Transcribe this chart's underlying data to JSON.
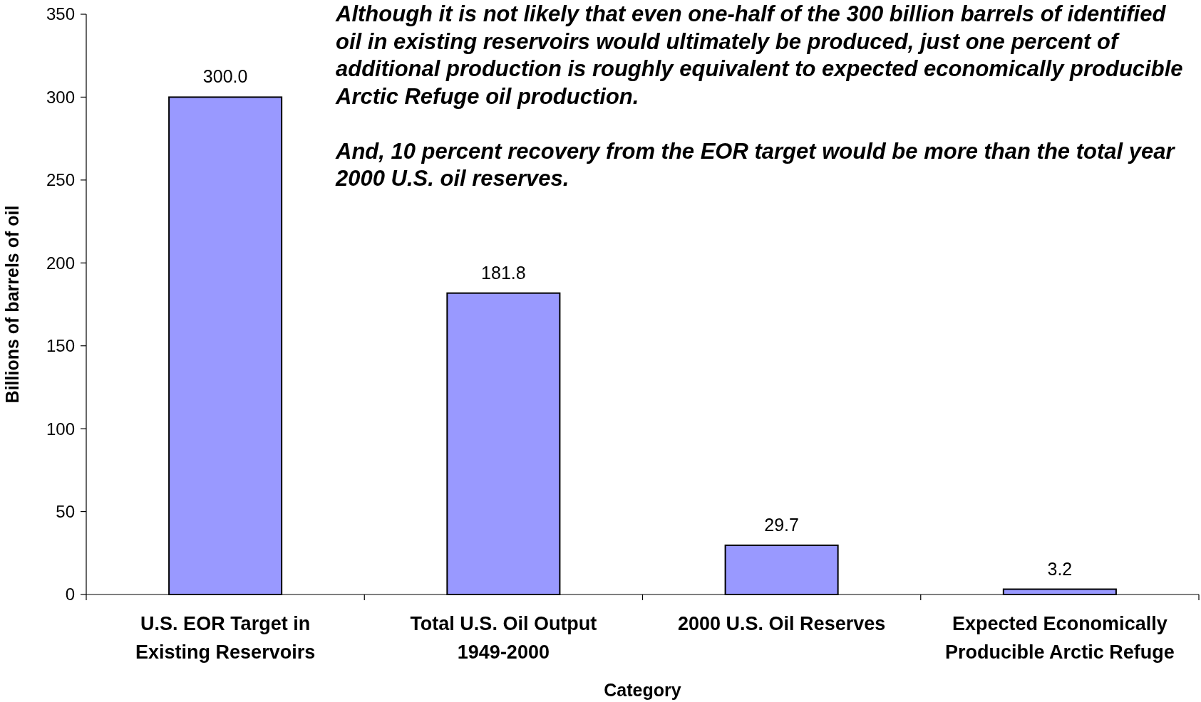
{
  "chart_data": {
    "type": "bar",
    "categories": [
      "U.S. EOR Target in Existing Reservoirs",
      "Total U.S. Oil Output 1949-2000",
      "2000 U.S. Oil Reserves",
      "Expected Economically Producible Arctic Refuge"
    ],
    "values": [
      300.0,
      181.8,
      29.7,
      3.2
    ],
    "value_labels": [
      "300.0",
      "181.8",
      "29.7",
      "3.2"
    ],
    "color": "#9999ff",
    "ylim": [
      0,
      350
    ],
    "yticks": [
      0,
      50,
      100,
      150,
      200,
      250,
      300,
      350
    ],
    "xlabel": "Category",
    "ylabel": "Billions of barrels of oil",
    "grid": false,
    "annotations": [
      "Although it is not likely that even one-half of the 300 billion barrels of identified oil in existing reservoirs would ultimately be produced, just one percent of additional production is roughly equivalent to expected economically producible Arctic Refuge oil production.",
      "And, 10 percent recovery from the EOR target would be more than the total year 2000 U.S. oil reserves."
    ]
  }
}
